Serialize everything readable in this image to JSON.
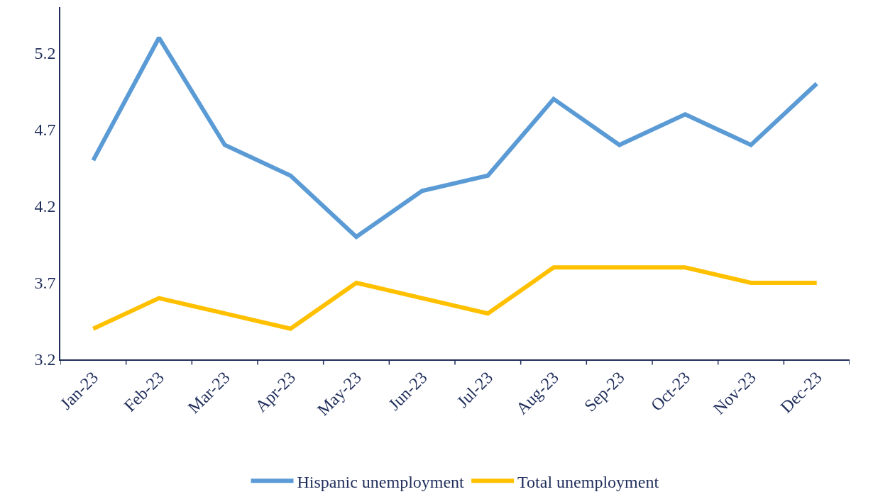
{
  "chart_data": {
    "type": "line",
    "categories": [
      "Jan-23",
      "Feb-23",
      "Mar-23",
      "Apr-23",
      "May-23",
      "Jun-23",
      "Jul-23",
      "Aug-23",
      "Sep-23",
      "Oct-23",
      "Nov-23",
      "Dec-23"
    ],
    "series": [
      {
        "name": "Hispanic unemployment",
        "color": "#5b9bd5",
        "values": [
          4.5,
          5.3,
          4.6,
          4.4,
          4.0,
          4.3,
          4.4,
          4.9,
          4.6,
          4.8,
          4.6,
          5.0
        ]
      },
      {
        "name": "Total unemployment",
        "color": "#ffc000",
        "values": [
          3.4,
          3.6,
          3.5,
          3.4,
          3.7,
          3.6,
          3.5,
          3.8,
          3.8,
          3.8,
          3.7,
          3.7
        ]
      }
    ],
    "ylim": [
      3.2,
      5.5
    ],
    "yticks": [
      3.2,
      3.7,
      4.2,
      4.7,
      5.2
    ],
    "legend": "bottom",
    "marker": "none",
    "line_style": "solid"
  }
}
